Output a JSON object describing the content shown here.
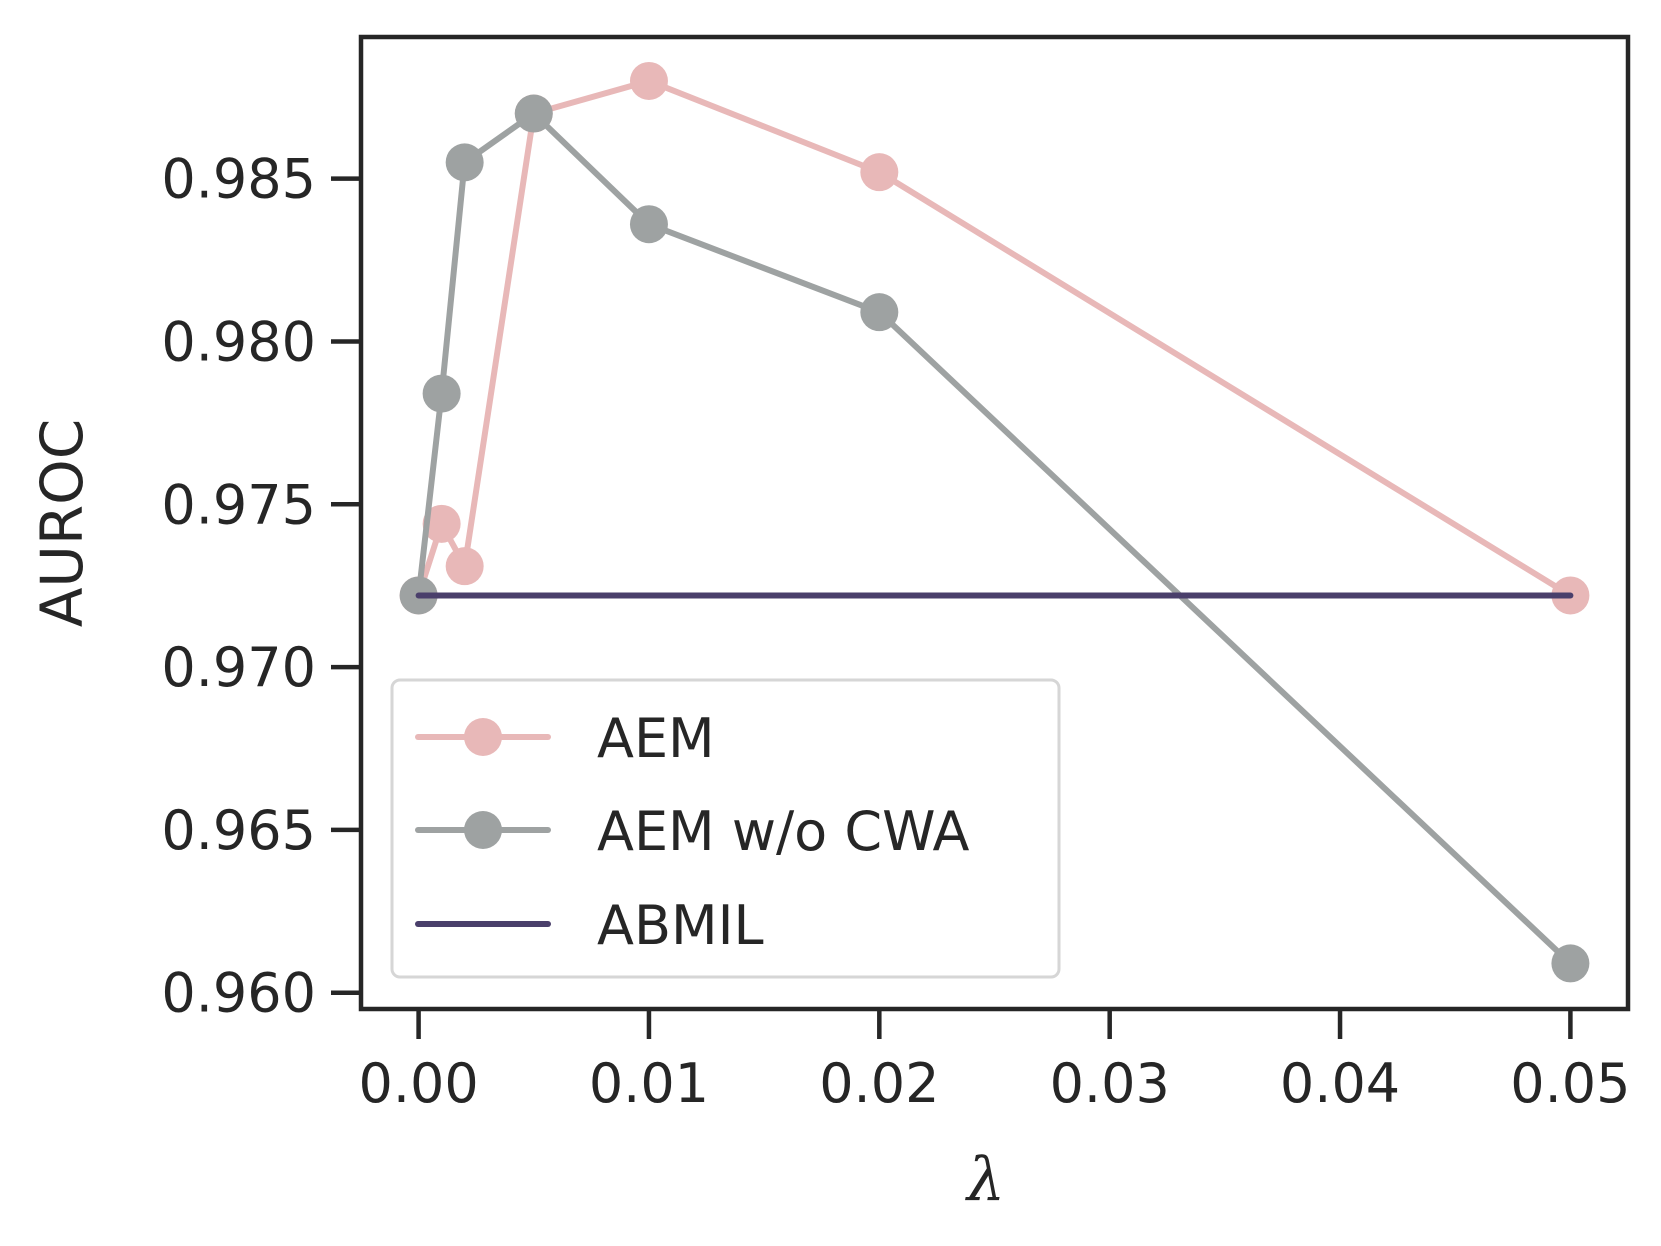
{
  "chart_data": {
    "type": "line",
    "title": "",
    "xlabel": "λ",
    "ylabel": "AUROC",
    "xlim": [
      -0.0025,
      0.0525
    ],
    "ylim": [
      0.9595,
      0.98935
    ],
    "xticks": [
      0.0,
      0.01,
      0.02,
      0.03,
      0.04,
      0.05
    ],
    "xtick_labels": [
      "0.00",
      "0.01",
      "0.02",
      "0.03",
      "0.04",
      "0.05"
    ],
    "yticks": [
      0.96,
      0.965,
      0.97,
      0.975,
      0.98,
      0.985
    ],
    "ytick_labels": [
      "0.960",
      "0.965",
      "0.970",
      "0.975",
      "0.980",
      "0.985"
    ],
    "grid": false,
    "legend_position": "lower-left",
    "series": [
      {
        "name": "AEM",
        "color": "#e8b8b8",
        "marker": "circle",
        "x": [
          0.0,
          0.001,
          0.002,
          0.005,
          0.01,
          0.02,
          0.05
        ],
        "y": [
          0.9722,
          0.9744,
          0.9731,
          0.987,
          0.988,
          0.9852,
          0.9722
        ]
      },
      {
        "name": "AEM w/o CWA",
        "color": "#9ea2a2",
        "marker": "circle",
        "x": [
          0.0,
          0.001,
          0.002,
          0.005,
          0.01,
          0.02,
          0.05
        ],
        "y": [
          0.9722,
          0.9784,
          0.9855,
          0.987,
          0.9836,
          0.9809,
          0.9609
        ]
      },
      {
        "name": "ABMIL",
        "color": "#4a3f6b",
        "marker": "none",
        "x": [
          0.0,
          0.05
        ],
        "y": [
          0.9722,
          0.9722
        ]
      }
    ]
  }
}
